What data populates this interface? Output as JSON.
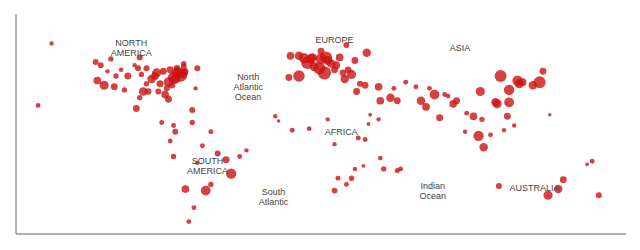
{
  "chart_data": {
    "type": "scatter",
    "color": "#cc1111",
    "tick_labels": false,
    "grid": false,
    "xlim": [
      -170,
      190
    ],
    "ylim": [
      -62,
      80
    ],
    "x": [
      -77,
      -75,
      -73,
      -80,
      -87,
      -90,
      -95,
      -82,
      -71,
      -76,
      -104,
      -112,
      -118,
      -122,
      -83,
      -98,
      -93,
      -71,
      -63,
      -79,
      -75,
      -97,
      -114,
      -123,
      -99,
      -77,
      -84,
      -58,
      -43,
      -46,
      -51,
      -70,
      -76,
      -66,
      -55,
      -60,
      -68,
      2,
      -3,
      13,
      10,
      4,
      12,
      9,
      14,
      19,
      24,
      28,
      30,
      37,
      23,
      18,
      16,
      21,
      25,
      10,
      -8,
      -3,
      0,
      5,
      6,
      -9,
      26,
      33,
      44,
      36,
      51,
      45,
      55,
      69,
      72,
      77,
      80,
      88,
      90,
      100,
      103,
      106,
      120,
      121,
      114,
      116,
      121,
      104,
      113,
      126,
      127,
      129,
      139,
      135,
      141,
      150,
      144,
      153,
      115,
      -7,
      3,
      32,
      18,
      36,
      31,
      14,
      44,
      47,
      57,
      55,
      170,
      -149,
      -157,
      -66,
      -64,
      174,
      105,
      96,
      83,
      85,
      66,
      74,
      60,
      53,
      -80,
      -75,
      -71,
      -65,
      -55,
      -38,
      -34,
      -79,
      -77,
      -63,
      -17,
      -15,
      45,
      39,
      38,
      20,
      28,
      18,
      25,
      30,
      35,
      95,
      110,
      118,
      124,
      145,
      167,
      -88,
      -85,
      -92,
      -86,
      -106,
      -97,
      -78,
      -81,
      -72,
      -70,
      -93,
      -96,
      -100,
      -108,
      -120,
      -116,
      -111
    ],
    "values": [
      39,
      42,
      40.7,
      36,
      42,
      38,
      30,
      28,
      42,
      38,
      40,
      33,
      34,
      37,
      43,
      45,
      45,
      46,
      45,
      44,
      45,
      52,
      51,
      49,
      19,
      8,
      10,
      -34,
      -23,
      -14,
      -10,
      -33,
      4,
      10,
      4,
      -5,
      -54,
      48.5,
      40,
      52,
      51,
      51,
      42,
      45,
      50,
      47,
      38,
      41,
      50,
      55,
      42,
      44,
      48,
      52,
      60,
      56,
      53,
      53,
      51.5,
      52,
      46,
      39,
      44,
      35,
      33,
      34,
      26,
      24,
      24,
      24,
      20,
      28,
      13,
      22,
      24,
      14,
      1.3,
      -6,
      14,
      23,
      22,
      40,
      31,
      30,
      23,
      37,
      35,
      36,
      36,
      34,
      43,
      -33,
      -37,
      -27,
      -31,
      5,
      6,
      0,
      -4,
      -1,
      30,
      12,
      12,
      -20,
      -20,
      -21,
      -15,
      61,
      21,
      18,
      32,
      -37,
      12,
      16,
      28,
      27,
      33,
      32,
      36,
      32,
      25,
      44,
      48,
      -45,
      -30,
      -12,
      -8,
      -2,
      -12,
      -16,
      14,
      11,
      -13,
      15,
      9,
      -26,
      -26,
      -34,
      -30,
      -20,
      -18,
      4,
      2,
      5,
      8,
      15,
      -17,
      40,
      35,
      30,
      30,
      31,
      26,
      34,
      32,
      41,
      43,
      35,
      41,
      47,
      44,
      47,
      43,
      40
    ],
    "sizes": [
      55,
      45,
      80,
      40,
      35,
      30,
      30,
      25,
      30,
      40,
      20,
      20,
      35,
      25,
      20,
      15,
      15,
      15,
      15,
      20,
      18,
      15,
      12,
      15,
      20,
      10,
      10,
      40,
      45,
      20,
      15,
      25,
      15,
      12,
      10,
      10,
      10,
      65,
      55,
      60,
      50,
      40,
      75,
      60,
      35,
      25,
      30,
      35,
      20,
      30,
      20,
      20,
      30,
      25,
      15,
      20,
      25,
      30,
      45,
      30,
      35,
      20,
      18,
      15,
      25,
      20,
      30,
      25,
      20,
      30,
      25,
      40,
      20,
      25,
      20,
      25,
      45,
      30,
      20,
      40,
      35,
      60,
      45,
      35,
      30,
      45,
      35,
      25,
      60,
      30,
      20,
      30,
      35,
      20,
      15,
      10,
      10,
      10,
      8,
      10,
      20,
      8,
      8,
      12,
      10,
      11,
      10,
      8,
      10,
      15,
      8,
      15,
      12,
      10,
      10,
      9,
      10,
      10,
      10,
      10,
      20,
      15,
      12,
      10,
      12,
      10,
      8,
      10,
      12,
      8,
      8,
      5,
      9,
      6,
      6,
      10,
      12,
      15,
      10,
      8,
      6,
      8,
      10,
      8,
      8,
      5,
      6,
      25,
      20,
      18,
      15,
      12,
      12,
      18,
      15,
      25,
      15,
      12,
      12,
      8,
      8,
      15,
      8,
      12
    ],
    "annotations": [
      {
        "text": "North\nAtlantic\nOcean",
        "x": -33,
        "y": 33
      },
      {
        "text": "South\nAtlantic",
        "x": -18,
        "y": -38
      },
      {
        "text": "Indian\nOcean",
        "x": 76,
        "y": -34
      },
      {
        "text": "NORTH\nAMERICA",
        "x": -102,
        "y": 58
      },
      {
        "text": "SOUTH\nAMERICA",
        "x": -57,
        "y": -18
      },
      {
        "text": "EUROPE",
        "x": 18,
        "y": 63
      },
      {
        "text": "AFRICA",
        "x": 22,
        "y": 4
      },
      {
        "text": "ASIA",
        "x": 92,
        "y": 58
      },
      {
        "text": "AUSTRALIA",
        "x": 136,
        "y": -32
      }
    ]
  }
}
